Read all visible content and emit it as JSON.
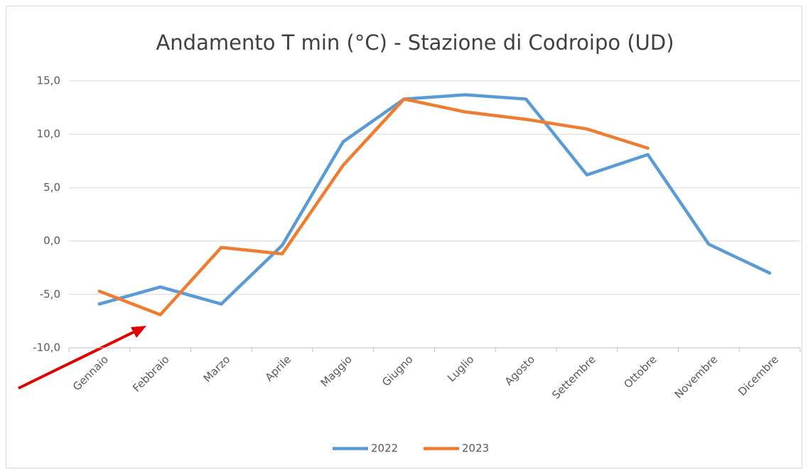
{
  "chart_data": {
    "type": "line",
    "title": "Andamento T min (°C) - Stazione di Codroipo (UD)",
    "categories": [
      "Gennaio",
      "Febbraio",
      "Marzo",
      "Aprile",
      "Maggio",
      "Giugno",
      "Luglio",
      "Agosto",
      "Settembre",
      "Ottobre",
      "Novembre",
      "Dicembre"
    ],
    "series": [
      {
        "name": "2022",
        "color": "#5b9bd5",
        "values": [
          -5.9,
          -4.3,
          -5.9,
          -0.4,
          9.3,
          13.3,
          13.7,
          13.3,
          6.2,
          8.1,
          -0.3,
          -3.0
        ]
      },
      {
        "name": "2023",
        "color": "#ed7d31",
        "values": [
          -4.7,
          -6.9,
          -0.6,
          -1.2,
          7.1,
          13.3,
          12.1,
          11.4,
          10.5,
          8.7,
          null,
          null
        ]
      }
    ],
    "ylim": [
      -10,
      15
    ],
    "yticks": [
      {
        "value": -10,
        "label": "-10,0"
      },
      {
        "value": -5,
        "label": "-5,0"
      },
      {
        "value": 0,
        "label": "0,0"
      },
      {
        "value": 5,
        "label": "5,0"
      },
      {
        "value": 10,
        "label": "10,0"
      },
      {
        "value": 15,
        "label": "15,0"
      }
    ],
    "grid": true,
    "legend": "bottom"
  }
}
